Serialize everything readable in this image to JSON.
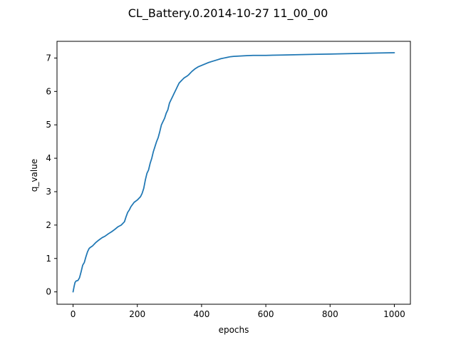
{
  "chart_data": {
    "type": "line",
    "title": "CL_Battery.0.2014-10-27 11_00_00",
    "xlabel": "epochs",
    "ylabel": "q_value",
    "xlim": [
      -50,
      1050
    ],
    "ylim": [
      -0.37,
      7.5
    ],
    "xticks": [
      0,
      200,
      400,
      600,
      800,
      1000
    ],
    "yticks": [
      0,
      1,
      2,
      3,
      4,
      5,
      6,
      7
    ],
    "grid": false,
    "color": "#1f77b4",
    "series": [
      {
        "x": [
          0,
          3,
          6,
          10,
          15,
          20,
          25,
          30,
          35,
          40,
          45,
          50,
          55,
          60,
          70,
          80,
          90,
          100,
          110,
          120,
          130,
          140,
          150,
          160,
          165,
          170,
          175,
          180,
          190,
          200,
          210,
          215,
          220,
          225,
          230,
          235,
          240,
          245,
          250,
          255,
          260,
          265,
          270,
          275,
          280,
          285,
          290,
          295,
          300,
          305,
          310,
          315,
          320,
          325,
          330,
          335,
          340,
          345,
          350,
          355,
          360,
          370,
          380,
          390,
          400,
          410,
          420,
          430,
          440,
          450,
          460,
          470,
          480,
          490,
          500,
          520,
          540,
          560,
          600,
          650,
          700,
          750,
          800,
          850,
          900,
          950,
          1000
        ],
        "y": [
          0.0,
          0.15,
          0.28,
          0.33,
          0.34,
          0.42,
          0.6,
          0.8,
          0.88,
          1.05,
          1.2,
          1.3,
          1.34,
          1.37,
          1.47,
          1.55,
          1.62,
          1.67,
          1.74,
          1.8,
          1.87,
          1.95,
          2.0,
          2.1,
          2.25,
          2.38,
          2.45,
          2.55,
          2.68,
          2.75,
          2.85,
          2.95,
          3.1,
          3.35,
          3.55,
          3.65,
          3.85,
          4.0,
          4.2,
          4.35,
          4.5,
          4.62,
          4.8,
          5.0,
          5.1,
          5.2,
          5.35,
          5.45,
          5.65,
          5.75,
          5.85,
          5.95,
          6.05,
          6.15,
          6.25,
          6.3,
          6.35,
          6.4,
          6.43,
          6.46,
          6.5,
          6.6,
          6.68,
          6.74,
          6.78,
          6.82,
          6.86,
          6.89,
          6.92,
          6.95,
          6.98,
          7.0,
          7.02,
          7.04,
          7.05,
          7.06,
          7.07,
          7.08,
          7.08,
          7.09,
          7.1,
          7.11,
          7.12,
          7.13,
          7.14,
          7.15,
          7.16
        ]
      }
    ]
  }
}
